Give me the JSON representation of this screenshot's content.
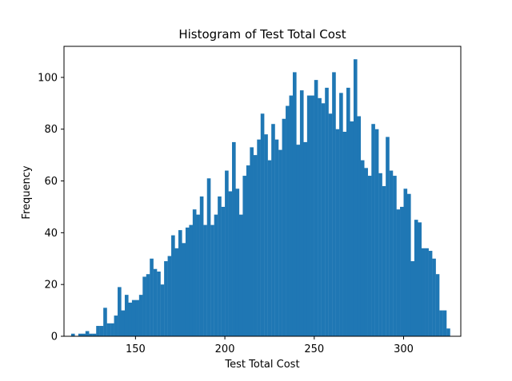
{
  "chart_data": {
    "type": "bar",
    "title": "Histogram of Test Total Cost",
    "xlabel": "Test Total Cost",
    "ylabel": "Frequency",
    "xlim": [
      110,
      332
    ],
    "ylim": [
      0,
      112
    ],
    "grid": false,
    "xticks": [
      150,
      200,
      250,
      300
    ],
    "yticks": [
      0,
      20,
      40,
      60,
      80,
      100
    ],
    "bar_color": "#1f77b4",
    "bins": [
      [
        114,
        116,
        1
      ],
      [
        116,
        118,
        0
      ],
      [
        118,
        120,
        1
      ],
      [
        120,
        122,
        1
      ],
      [
        122,
        124,
        2
      ],
      [
        124,
        126,
        1
      ],
      [
        126,
        128,
        1
      ],
      [
        128,
        130,
        4
      ],
      [
        130,
        132,
        4
      ],
      [
        132,
        134,
        11
      ],
      [
        134,
        136,
        5
      ],
      [
        136,
        138,
        5
      ],
      [
        138,
        140,
        8
      ],
      [
        140,
        142,
        19
      ],
      [
        142,
        144,
        10
      ],
      [
        144,
        146,
        16
      ],
      [
        146,
        148,
        13
      ],
      [
        148,
        150,
        14
      ],
      [
        150,
        152,
        14
      ],
      [
        152,
        154,
        16
      ],
      [
        154,
        156,
        23
      ],
      [
        156,
        158,
        24
      ],
      [
        158,
        160,
        30
      ],
      [
        160,
        162,
        26
      ],
      [
        162,
        164,
        25
      ],
      [
        164,
        166,
        20
      ],
      [
        166,
        168,
        29
      ],
      [
        168,
        170,
        31
      ],
      [
        170,
        172,
        39
      ],
      [
        172,
        174,
        34
      ],
      [
        174,
        176,
        41
      ],
      [
        176,
        178,
        36
      ],
      [
        178,
        180,
        42
      ],
      [
        180,
        182,
        43
      ],
      [
        182,
        184,
        49
      ],
      [
        184,
        186,
        47
      ],
      [
        186,
        188,
        54
      ],
      [
        188,
        190,
        43
      ],
      [
        190,
        192,
        61
      ],
      [
        192,
        194,
        43
      ],
      [
        194,
        196,
        47
      ],
      [
        196,
        198,
        54
      ],
      [
        198,
        200,
        50
      ],
      [
        200,
        202,
        64
      ],
      [
        202,
        204,
        56
      ],
      [
        204,
        206,
        75
      ],
      [
        206,
        208,
        57
      ],
      [
        208,
        210,
        47
      ],
      [
        210,
        212,
        62
      ],
      [
        212,
        214,
        66
      ],
      [
        214,
        216,
        73
      ],
      [
        216,
        218,
        70
      ],
      [
        218,
        220,
        76
      ],
      [
        220,
        222,
        86
      ],
      [
        222,
        224,
        78
      ],
      [
        224,
        226,
        68
      ],
      [
        226,
        228,
        82
      ],
      [
        228,
        230,
        76
      ],
      [
        230,
        232,
        72
      ],
      [
        232,
        234,
        84
      ],
      [
        234,
        236,
        89
      ],
      [
        236,
        238,
        93
      ],
      [
        238,
        240,
        102
      ],
      [
        240,
        242,
        74
      ],
      [
        242,
        244,
        95
      ],
      [
        244,
        246,
        75
      ],
      [
        246,
        248,
        93
      ],
      [
        248,
        250,
        93
      ],
      [
        250,
        252,
        99
      ],
      [
        252,
        254,
        92
      ],
      [
        254,
        256,
        90
      ],
      [
        256,
        258,
        96
      ],
      [
        258,
        260,
        86
      ],
      [
        260,
        262,
        102
      ],
      [
        262,
        264,
        80
      ],
      [
        264,
        266,
        94
      ],
      [
        266,
        268,
        79
      ],
      [
        268,
        270,
        96
      ],
      [
        270,
        272,
        83
      ],
      [
        272,
        274,
        107
      ],
      [
        274,
        276,
        85
      ],
      [
        276,
        278,
        68
      ],
      [
        278,
        280,
        65
      ],
      [
        280,
        282,
        62
      ],
      [
        282,
        284,
        82
      ],
      [
        284,
        286,
        80
      ],
      [
        286,
        288,
        63
      ],
      [
        288,
        290,
        58
      ],
      [
        290,
        292,
        77
      ],
      [
        292,
        294,
        64
      ],
      [
        294,
        296,
        62
      ],
      [
        296,
        298,
        49
      ],
      [
        298,
        300,
        50
      ],
      [
        300,
        302,
        57
      ],
      [
        302,
        304,
        55
      ],
      [
        304,
        306,
        29
      ],
      [
        306,
        308,
        45
      ],
      [
        308,
        310,
        44
      ],
      [
        310,
        312,
        34
      ],
      [
        312,
        314,
        34
      ],
      [
        314,
        316,
        33
      ],
      [
        316,
        318,
        30
      ],
      [
        318,
        320,
        24
      ],
      [
        320,
        322,
        10
      ],
      [
        322,
        324,
        10
      ],
      [
        324,
        326,
        3
      ]
    ]
  }
}
